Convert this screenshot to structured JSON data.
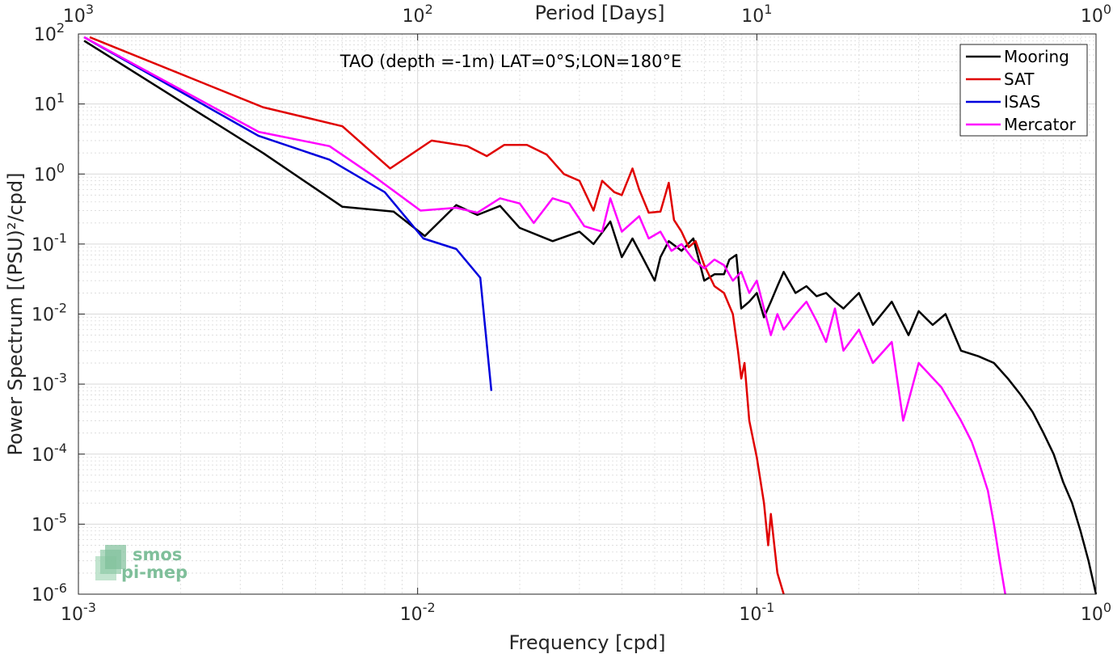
{
  "chart_data": {
    "type": "line",
    "title": "TAO (depth =-1m) LAT=0°S;LON=180°E",
    "xlabel": "Frequency [cpd]",
    "ylabel": "Power Spectrum [(PSU)²/cpd]",
    "x2label": "Period [Days]",
    "xscale": "log",
    "yscale": "log",
    "xlim": [
      0.001,
      1
    ],
    "ylim": [
      1e-06,
      100
    ],
    "grid": true,
    "legend_position": "top-right",
    "x_ticks": [
      0.001,
      0.01,
      0.1,
      1
    ],
    "x_tick_labels": [
      {
        "base": "10",
        "exp": "-3"
      },
      {
        "base": "10",
        "exp": "-2"
      },
      {
        "base": "10",
        "exp": "-1"
      },
      {
        "base": "10",
        "exp": "0"
      }
    ],
    "x2_ticks": [
      1000,
      100,
      10,
      1
    ],
    "x2_tick_labels": [
      {
        "base": "10",
        "exp": "3"
      },
      {
        "base": "10",
        "exp": "2"
      },
      {
        "base": "10",
        "exp": "1"
      },
      {
        "base": "10",
        "exp": "0"
      }
    ],
    "y_ticks": [
      100,
      10,
      1,
      0.1,
      0.01,
      0.001,
      0.0001,
      1e-05,
      1e-06
    ],
    "y_tick_labels": [
      {
        "base": "10",
        "exp": "2"
      },
      {
        "base": "10",
        "exp": "1"
      },
      {
        "base": "10",
        "exp": "0"
      },
      {
        "base": "10",
        "exp": "-1"
      },
      {
        "base": "10",
        "exp": "-2"
      },
      {
        "base": "10",
        "exp": "-3"
      },
      {
        "base": "10",
        "exp": "-4"
      },
      {
        "base": "10",
        "exp": "-5"
      },
      {
        "base": "10",
        "exp": "-6"
      }
    ],
    "series": [
      {
        "name": "Mooring",
        "color": "#000000",
        "points": [
          [
            0.00104,
            80
          ],
          [
            0.0035,
            2
          ],
          [
            0.006,
            0.34
          ],
          [
            0.0085,
            0.29
          ],
          [
            0.0105,
            0.13
          ],
          [
            0.013,
            0.36
          ],
          [
            0.015,
            0.26
          ],
          [
            0.0175,
            0.35
          ],
          [
            0.02,
            0.17
          ],
          [
            0.025,
            0.11
          ],
          [
            0.03,
            0.15
          ],
          [
            0.033,
            0.1
          ],
          [
            0.037,
            0.21
          ],
          [
            0.04,
            0.065
          ],
          [
            0.043,
            0.12
          ],
          [
            0.046,
            0.065
          ],
          [
            0.05,
            0.03
          ],
          [
            0.052,
            0.065
          ],
          [
            0.055,
            0.11
          ],
          [
            0.06,
            0.08
          ],
          [
            0.065,
            0.12
          ],
          [
            0.07,
            0.03
          ],
          [
            0.075,
            0.037
          ],
          [
            0.08,
            0.037
          ],
          [
            0.083,
            0.06
          ],
          [
            0.087,
            0.07
          ],
          [
            0.09,
            0.012
          ],
          [
            0.095,
            0.015
          ],
          [
            0.1,
            0.02
          ],
          [
            0.105,
            0.009
          ],
          [
            0.11,
            0.015
          ],
          [
            0.115,
            0.025
          ],
          [
            0.12,
            0.04
          ],
          [
            0.13,
            0.02
          ],
          [
            0.14,
            0.025
          ],
          [
            0.15,
            0.018
          ],
          [
            0.16,
            0.02
          ],
          [
            0.17,
            0.015
          ],
          [
            0.18,
            0.012
          ],
          [
            0.2,
            0.02
          ],
          [
            0.22,
            0.007
          ],
          [
            0.25,
            0.015
          ],
          [
            0.28,
            0.005
          ],
          [
            0.3,
            0.011
          ],
          [
            0.33,
            0.007
          ],
          [
            0.36,
            0.01
          ],
          [
            0.4,
            0.003
          ],
          [
            0.45,
            0.0025
          ],
          [
            0.5,
            0.002
          ],
          [
            0.55,
            0.0012
          ],
          [
            0.6,
            0.0007
          ],
          [
            0.65,
            0.0004
          ],
          [
            0.7,
            0.0002
          ],
          [
            0.75,
            0.0001
          ],
          [
            0.8,
            4e-05
          ],
          [
            0.85,
            2e-05
          ],
          [
            0.9,
            8e-06
          ],
          [
            0.95,
            3e-06
          ],
          [
            1.0,
            1e-06
          ]
        ]
      },
      {
        "name": "SAT",
        "color": "#e00000",
        "points": [
          [
            0.00108,
            90
          ],
          [
            0.0035,
            9
          ],
          [
            0.006,
            4.8
          ],
          [
            0.0083,
            1.2
          ],
          [
            0.011,
            3
          ],
          [
            0.014,
            2.5
          ],
          [
            0.016,
            1.8
          ],
          [
            0.018,
            2.6
          ],
          [
            0.021,
            2.6
          ],
          [
            0.024,
            1.9
          ],
          [
            0.027,
            1
          ],
          [
            0.03,
            0.8
          ],
          [
            0.033,
            0.3
          ],
          [
            0.035,
            0.8
          ],
          [
            0.038,
            0.55
          ],
          [
            0.04,
            0.5
          ],
          [
            0.042,
            0.9
          ],
          [
            0.043,
            1.2
          ],
          [
            0.045,
            0.6
          ],
          [
            0.048,
            0.28
          ],
          [
            0.052,
            0.29
          ],
          [
            0.055,
            0.75
          ],
          [
            0.057,
            0.22
          ],
          [
            0.06,
            0.15
          ],
          [
            0.063,
            0.09
          ],
          [
            0.066,
            0.11
          ],
          [
            0.07,
            0.05
          ],
          [
            0.075,
            0.025
          ],
          [
            0.08,
            0.02
          ],
          [
            0.085,
            0.01
          ],
          [
            0.088,
            0.003
          ],
          [
            0.09,
            0.0012
          ],
          [
            0.092,
            0.002
          ],
          [
            0.095,
            0.0003
          ],
          [
            0.1,
            9e-05
          ],
          [
            0.105,
            2e-05
          ],
          [
            0.108,
            5e-06
          ],
          [
            0.11,
            1.4e-05
          ],
          [
            0.115,
            2e-06
          ],
          [
            0.12,
            1e-06
          ]
        ]
      },
      {
        "name": "ISAS",
        "color": "#0000dd",
        "points": [
          [
            0.00104,
            90
          ],
          [
            0.0034,
            3.5
          ],
          [
            0.0055,
            1.6
          ],
          [
            0.008,
            0.55
          ],
          [
            0.0104,
            0.12
          ],
          [
            0.013,
            0.085
          ],
          [
            0.0153,
            0.033
          ],
          [
            0.0165,
            0.0008
          ]
        ]
      },
      {
        "name": "Mercator",
        "color": "#ff00ff",
        "points": [
          [
            0.00104,
            90
          ],
          [
            0.0034,
            4
          ],
          [
            0.0055,
            2.5
          ],
          [
            0.0075,
            0.9
          ],
          [
            0.0102,
            0.3
          ],
          [
            0.013,
            0.33
          ],
          [
            0.015,
            0.28
          ],
          [
            0.0175,
            0.45
          ],
          [
            0.02,
            0.38
          ],
          [
            0.022,
            0.2
          ],
          [
            0.025,
            0.45
          ],
          [
            0.028,
            0.38
          ],
          [
            0.031,
            0.18
          ],
          [
            0.035,
            0.15
          ],
          [
            0.037,
            0.45
          ],
          [
            0.04,
            0.15
          ],
          [
            0.045,
            0.25
          ],
          [
            0.048,
            0.12
          ],
          [
            0.052,
            0.15
          ],
          [
            0.056,
            0.08
          ],
          [
            0.06,
            0.1
          ],
          [
            0.065,
            0.06
          ],
          [
            0.07,
            0.045
          ],
          [
            0.075,
            0.06
          ],
          [
            0.08,
            0.05
          ],
          [
            0.085,
            0.03
          ],
          [
            0.09,
            0.04
          ],
          [
            0.095,
            0.02
          ],
          [
            0.1,
            0.03
          ],
          [
            0.11,
            0.005
          ],
          [
            0.115,
            0.01
          ],
          [
            0.12,
            0.006
          ],
          [
            0.13,
            0.01
          ],
          [
            0.14,
            0.015
          ],
          [
            0.15,
            0.008
          ],
          [
            0.16,
            0.004
          ],
          [
            0.17,
            0.012
          ],
          [
            0.18,
            0.003
          ],
          [
            0.2,
            0.006
          ],
          [
            0.22,
            0.002
          ],
          [
            0.25,
            0.004
          ],
          [
            0.27,
            0.0003
          ],
          [
            0.3,
            0.002
          ],
          [
            0.35,
            0.0009
          ],
          [
            0.4,
            0.0003
          ],
          [
            0.43,
            0.00015
          ],
          [
            0.45,
            8e-05
          ],
          [
            0.48,
            3e-05
          ],
          [
            0.5,
            1e-05
          ],
          [
            0.52,
            3e-06
          ],
          [
            0.54,
            1e-06
          ]
        ]
      }
    ]
  },
  "logo": {
    "line1": "smos",
    "line2": "pi-mep",
    "color": "#7fbf9a"
  }
}
